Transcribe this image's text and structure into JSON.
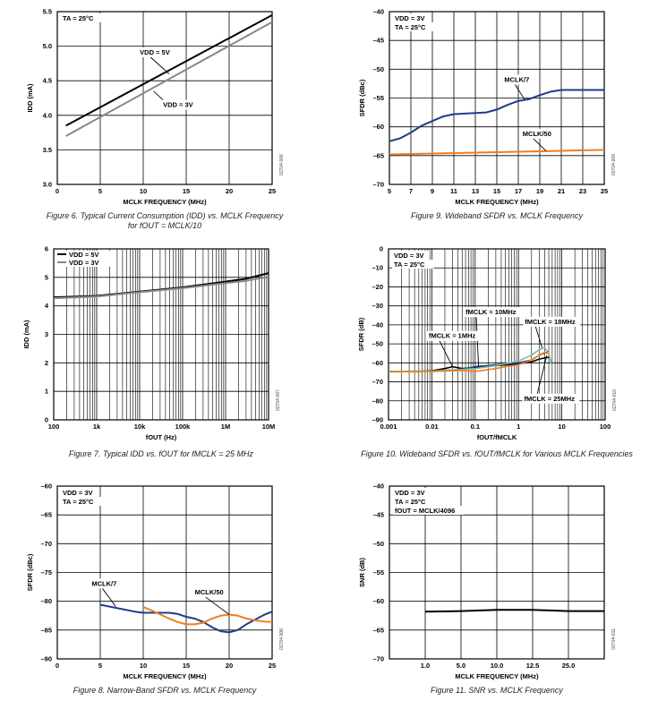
{
  "colors": {
    "black": "#000000",
    "gray": "#888888",
    "blue": "#1f3c88",
    "orange": "#f07d1e",
    "green": "#7fb8a0",
    "grid": "#000000"
  },
  "charts": [
    {
      "id": "fig6",
      "type": "line",
      "xscale": "linear",
      "xlim": [
        0,
        25
      ],
      "ylim": [
        3.0,
        5.5
      ],
      "xticks": [
        0,
        5,
        10,
        15,
        20,
        25
      ],
      "xticklabels": [
        "0",
        "5",
        "10",
        "15",
        "20",
        "25"
      ],
      "yticks": [
        3.0,
        3.5,
        4.0,
        4.5,
        5.0,
        5.5
      ],
      "yticklabels": [
        "3.0",
        "3.5",
        "4.0",
        "4.5",
        "5.0",
        "5.5"
      ],
      "xlabel": "MCLK FREQUENCY (MHz)",
      "ylabel": "IDD (mA)",
      "note_lines": [
        "TA = 25°C"
      ],
      "side_code": "02704-006",
      "caption_lines": [
        "Figure 6. Typical Current Consumption (IDD) vs. MCLK Frequency",
        "for fOUT = MCLK/10"
      ],
      "series": [
        {
          "name": "VDD = 5V",
          "color": "#000000",
          "width": 2,
          "x": [
            1,
            25
          ],
          "y": [
            3.85,
            5.45
          ]
        },
        {
          "name": "VDD = 3V",
          "color": "#888888",
          "width": 2,
          "x": [
            1,
            25
          ],
          "y": [
            3.7,
            5.35
          ]
        }
      ],
      "annotations": [
        {
          "text": "VDD = 5V",
          "x": 9.6,
          "y": 4.88,
          "ax": 13.0,
          "ay": 4.6
        },
        {
          "text": "VDD = 3V",
          "x": 12.3,
          "y": 4.12,
          "ax": 11.2,
          "ay": 4.35
        }
      ]
    },
    {
      "id": "fig9",
      "type": "line",
      "xscale": "linear",
      "xlim": [
        5,
        25
      ],
      "ylim": [
        -70,
        -40
      ],
      "xticks": [
        5,
        7,
        9,
        11,
        13,
        15,
        17,
        19,
        21,
        23,
        25
      ],
      "xticklabels": [
        "5",
        "7",
        "9",
        "11",
        "13",
        "15",
        "17",
        "19",
        "21",
        "23",
        "25"
      ],
      "yticks": [
        -70,
        -65,
        -60,
        -55,
        -50,
        -45,
        -40
      ],
      "yticklabels": [
        "–70",
        "–65",
        "–60",
        "–55",
        "–50",
        "–45",
        "–40"
      ],
      "xlabel": "MCLK FREQUENCY (MHz)",
      "ylabel": "SFDR (dBc)",
      "note_lines": [
        "VDD = 3V",
        "TA = 25°C"
      ],
      "side_code": "02704-009",
      "caption_lines": [
        "Figure 9. Wideband SFDR vs. MCLK Frequency"
      ],
      "series": [
        {
          "name": "MCLK/7",
          "color": "#1f3c88",
          "width": 2,
          "x": [
            5,
            6,
            7,
            8,
            9,
            10,
            11,
            12,
            13,
            14,
            15,
            16,
            17,
            18,
            19,
            20,
            21,
            22,
            23,
            24,
            25
          ],
          "y": [
            -62.5,
            -62.0,
            -61.0,
            -59.8,
            -59.0,
            -58.2,
            -57.8,
            -57.7,
            -57.6,
            -57.5,
            -57.0,
            -56.2,
            -55.5,
            -55.2,
            -54.5,
            -53.9,
            -53.6,
            -53.6,
            -53.6,
            -53.6,
            -53.6
          ]
        },
        {
          "name": "MCLK/50",
          "color": "#f07d1e",
          "width": 2,
          "x": [
            5,
            10,
            15,
            20,
            25
          ],
          "y": [
            -64.8,
            -64.6,
            -64.4,
            -64.2,
            -64.0
          ]
        }
      ],
      "annotations": [
        {
          "text": "MCLK/7",
          "x": 15.7,
          "y": -52.2,
          "ax": 17.6,
          "ay": -55.3
        },
        {
          "text": "MCLK/50",
          "x": 17.4,
          "y": -61.6,
          "ax": 19.6,
          "ay": -64.2
        }
      ]
    },
    {
      "id": "fig7",
      "type": "line",
      "xscale": "log",
      "xlim": [
        100,
        10000000
      ],
      "ylim": [
        0,
        6
      ],
      "xticks": [
        100,
        1000,
        10000,
        100000,
        1000000,
        10000000
      ],
      "xticklabels": [
        "100",
        "1k",
        "10k",
        "100k",
        "1M",
        "10M"
      ],
      "yticks": [
        0,
        1,
        2,
        3,
        4,
        5,
        6
      ],
      "yticklabels": [
        "0",
        "1",
        "2",
        "3",
        "4",
        "5",
        "6"
      ],
      "xlabel": "fOUT (Hz)",
      "ylabel": "IDD (mA)",
      "note_lines": [],
      "side_code": "02704-007",
      "caption_lines": [
        "Figure 7. Typical IDD vs. fOUT for fMCLK = 25 MHz"
      ],
      "series": [
        {
          "name": "VDD = 5V",
          "color": "#000000",
          "width": 2,
          "x": [
            100,
            1000,
            10000,
            100000,
            1000000,
            3000000,
            10000000
          ],
          "y": [
            4.3,
            4.35,
            4.5,
            4.65,
            4.85,
            4.95,
            5.15
          ]
        },
        {
          "name": "VDD = 3V",
          "color": "#888888",
          "width": 2,
          "x": [
            100,
            1000,
            10000,
            100000,
            1000000,
            3000000,
            10000000
          ],
          "y": [
            4.27,
            4.33,
            4.48,
            4.62,
            4.8,
            4.88,
            5.02
          ]
        }
      ],
      "legend": [
        {
          "text": "VDD = 5V",
          "color": "#000000"
        },
        {
          "text": "VDD = 3V",
          "color": "#888888"
        }
      ],
      "annotations": []
    },
    {
      "id": "fig10",
      "type": "line",
      "xscale": "log",
      "xlim": [
        0.001,
        100
      ],
      "ylim": [
        -90,
        0
      ],
      "xticks": [
        0.001,
        0.01,
        0.1,
        1,
        10,
        100
      ],
      "xticklabels": [
        "0.001",
        "0.01",
        "0.1",
        "1",
        "10",
        "100"
      ],
      "yticks": [
        -90,
        -80,
        -70,
        -60,
        -50,
        -40,
        -30,
        -20,
        -10,
        0
      ],
      "yticklabels": [
        "–90",
        "–80",
        "–70",
        "–60",
        "–50",
        "–40",
        "–30",
        "–20",
        "–10",
        "0"
      ],
      "xlabel": "fOUT/fMCLK",
      "ylabel": "SFDR (dB)",
      "note_lines": [
        "VDD = 3V",
        "TA = 25°C"
      ],
      "side_code": "02704-010",
      "caption_lines": [
        "Figure 10. Wideband SFDR vs. fOUT/fMCLK for Various MCLK Frequencies"
      ],
      "series": [
        {
          "name": "fMCLK = 1MHz",
          "color": "#000000",
          "width": 1.6,
          "x": [
            0.001,
            0.005,
            0.01,
            0.02,
            0.03,
            0.05,
            0.1,
            0.3,
            1,
            2,
            3,
            5
          ],
          "y": [
            -64.5,
            -64.5,
            -64.2,
            -63.0,
            -62.0,
            -63.0,
            -62.5,
            -61.5,
            -60.5,
            -59.5,
            -58.0,
            -57.0
          ]
        },
        {
          "name": "fMCLK = 10MHz",
          "color": "#1f3c88",
          "width": 1.6,
          "x": [
            0.001,
            0.01,
            0.05,
            0.1,
            0.3,
            1,
            2,
            3,
            5
          ],
          "y": [
            -64.5,
            -64.3,
            -63.5,
            -62.0,
            -61.0,
            -60.0,
            -58.5,
            -56.0,
            -54.0
          ]
        },
        {
          "name": "fMCLK = 18MHz",
          "color": "#7fb8a0",
          "width": 1.6,
          "x": [
            0.001,
            0.01,
            0.1,
            0.3,
            1,
            2,
            3,
            4,
            5,
            6
          ],
          "y": [
            -64.5,
            -64.3,
            -63.0,
            -61.5,
            -59.0,
            -56.0,
            -53.0,
            -52.0,
            -55.0,
            -62.0
          ]
        },
        {
          "name": "fMCLK = 25MHz",
          "color": "#f07d1e",
          "width": 1.6,
          "x": [
            0.001,
            0.01,
            0.05,
            0.1,
            0.3,
            0.5,
            1,
            2,
            3,
            4,
            5
          ],
          "y": [
            -64.8,
            -64.5,
            -64.0,
            -64.5,
            -63.0,
            -62.0,
            -61.0,
            -58.5,
            -56.0,
            -54.5,
            -55.0
          ]
        }
      ],
      "annotations": [
        {
          "text": "fMCLK = 10MHz",
          "x": 0.06,
          "y": -34.5,
          "ax": 0.12,
          "ay": -62.0
        },
        {
          "text": "fMCLK = 1MHz",
          "x": 0.0085,
          "y": -47.0,
          "ax": 0.03,
          "ay": -62.0
        },
        {
          "text": "fMCLK = 18MHz",
          "x": 1.4,
          "y": -39.5,
          "ax": 3.5,
          "ay": -52.0
        },
        {
          "text": "fMCLK = 25MHz",
          "x": 1.35,
          "y": -80.0,
          "ax": 4.5,
          "ay": -56.0
        }
      ]
    },
    {
      "id": "fig8",
      "type": "line",
      "xscale": "linear",
      "xlim": [
        0,
        25
      ],
      "ylim": [
        -90,
        -60
      ],
      "xticks": [
        0,
        5,
        10,
        15,
        20,
        25
      ],
      "xticklabels": [
        "0",
        "5",
        "10",
        "15",
        "20",
        "25"
      ],
      "yticks": [
        -90,
        -85,
        -80,
        -75,
        -70,
        -65,
        -60
      ],
      "yticklabels": [
        "–90",
        "–85",
        "–80",
        "–75",
        "–70",
        "–65",
        "–60"
      ],
      "xlabel": "MCLK FREQUENCY (MHz)",
      "ylabel": "SFDR (dBc)",
      "note_lines": [
        "VDD = 3V",
        "TA = 25°C"
      ],
      "side_code": "02704-008",
      "caption_lines": [
        "Figure 8. Narrow-Band SFDR vs. MCLK Frequency"
      ],
      "series": [
        {
          "name": "MCLK/7",
          "color": "#1f3c88",
          "width": 2,
          "x": [
            5,
            7,
            9,
            10,
            11,
            12,
            13,
            14,
            15,
            16,
            17,
            18,
            19,
            20,
            21,
            22,
            23,
            24,
            25
          ],
          "y": [
            -80.6,
            -81.2,
            -81.8,
            -82.0,
            -82.0,
            -82.0,
            -82.0,
            -82.2,
            -82.7,
            -83.0,
            -83.6,
            -84.5,
            -85.2,
            -85.4,
            -85.0,
            -84.0,
            -83.2,
            -82.4,
            -81.8
          ]
        },
        {
          "name": "MCLK/50",
          "color": "#f07d1e",
          "width": 2,
          "x": [
            10,
            11,
            12,
            13,
            14,
            15,
            16,
            17,
            18,
            19,
            20,
            21,
            22,
            23,
            24,
            25
          ],
          "y": [
            -81.0,
            -81.6,
            -82.3,
            -83.0,
            -83.6,
            -84.0,
            -84.0,
            -83.7,
            -83.0,
            -82.5,
            -82.3,
            -82.5,
            -83.0,
            -83.3,
            -83.5,
            -83.6
          ]
        }
      ],
      "annotations": [
        {
          "text": "MCLK/7",
          "x": 4.0,
          "y": -77.3,
          "ax": 6.8,
          "ay": -80.9
        },
        {
          "text": "MCLK/50",
          "x": 16.0,
          "y": -78.8,
          "ax": 20.0,
          "ay": -82.3
        }
      ]
    },
    {
      "id": "fig11",
      "type": "line",
      "xscale": "linear",
      "xlim": [
        0,
        6
      ],
      "ylim": [
        -70,
        -40
      ],
      "xticks": [
        0,
        1,
        2,
        3,
        4,
        5,
        6
      ],
      "xticklabels": [
        "",
        "1.0",
        "5.0",
        "10.0",
        "12.5",
        "25.0",
        ""
      ],
      "yticks": [
        -70,
        -65,
        -60,
        -55,
        -50,
        -45,
        -40
      ],
      "yticklabels": [
        "–70",
        "–65",
        "–60",
        "–55",
        "–50",
        "–45",
        "–40"
      ],
      "xlabel": "MCLK FREQUENCY (MHz)",
      "ylabel": "SNR (dB)",
      "note_lines": [
        "VDD = 3V",
        "TA = 25°C",
        "fOUT = MCLK/4096"
      ],
      "side_code": "02704-011",
      "caption_lines": [
        "Figure 11. SNR vs. MCLK Frequency"
      ],
      "series": [
        {
          "name": "SNR",
          "color": "#000000",
          "width": 2,
          "x": [
            1,
            2,
            3,
            4,
            5,
            6
          ],
          "y": [
            -61.8,
            -61.7,
            -61.5,
            -61.5,
            -61.7,
            -61.7
          ]
        }
      ],
      "annotations": []
    }
  ]
}
